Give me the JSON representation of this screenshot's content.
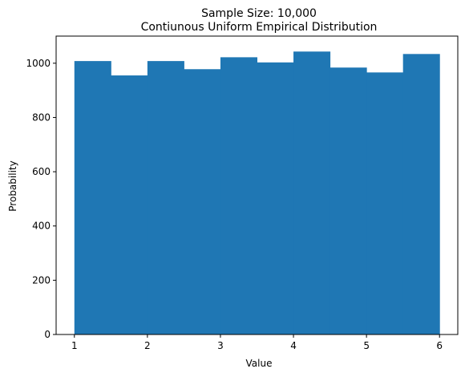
{
  "chart_data": {
    "type": "bar",
    "title_line1": "Sample Size: 10,000",
    "title_line2": "Contiunous Uniform Empirical Distribution",
    "xlabel": "Value",
    "ylabel": "Probability",
    "bin_edges": [
      1.0,
      1.5,
      2.0,
      2.5,
      3.0,
      3.5,
      4.0,
      4.5,
      5.0,
      5.5,
      6.0
    ],
    "values": [
      1008,
      955,
      1008,
      978,
      1022,
      1003,
      1043,
      984,
      966,
      1034
    ],
    "xlim": [
      0.75,
      6.25
    ],
    "ylim": [
      0,
      1100
    ],
    "xticks": [
      1,
      2,
      3,
      4,
      5,
      6
    ],
    "yticks": [
      0,
      200,
      400,
      600,
      800,
      1000
    ],
    "bar_color": "#1f77b4",
    "grid": false,
    "legend": false
  }
}
